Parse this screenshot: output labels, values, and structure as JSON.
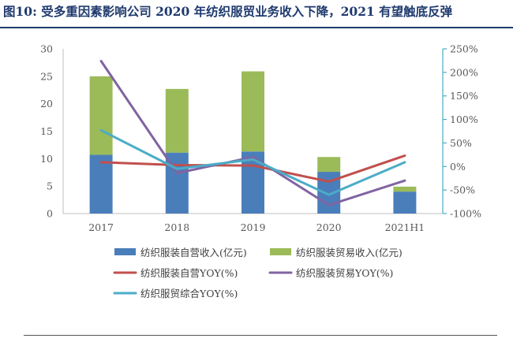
{
  "title": "图10:  受多重因素影响公司 2020 年纺织服贸业务收入下降，2021 有望触底反弹",
  "chart_data": {
    "type": "bar",
    "title": "图10:  受多重因素影响公司 2020 年纺织服贸业务收入下降，2021 有望触底反弹",
    "categories": [
      "2017",
      "2018",
      "2019",
      "2020",
      "2021H1"
    ],
    "bar_series": [
      {
        "name": "纺织服装自营收入(亿元)",
        "color": "#4a7ebb",
        "values": [
          10.7,
          11.1,
          11.3,
          7.6,
          4.0
        ]
      },
      {
        "name": "纺织服装贸易收入(亿元)",
        "color": "#9bbb59",
        "values": [
          14.3,
          11.6,
          14.6,
          2.7,
          0.9
        ]
      }
    ],
    "line_series": [
      {
        "name": "纺织服装自营YOY(%)",
        "color": "#c0504d",
        "values": [
          9,
          3,
          2,
          -32,
          23
        ]
      },
      {
        "name": "纺织服装贸易YOY(%)",
        "color": "#8064a2",
        "values": [
          224,
          -14,
          20,
          -82,
          -30
        ]
      },
      {
        "name": "纺织服贸综合YOY(%)",
        "color": "#4bacc6",
        "values": [
          77,
          -5,
          15,
          -60,
          9
        ]
      }
    ],
    "y_left": {
      "min": 0,
      "max": 30,
      "ticks": [
        0,
        5,
        10,
        15,
        20,
        25,
        30
      ]
    },
    "y_right": {
      "min": -100,
      "max": 250,
      "ticks": [
        "-100%",
        "-50%",
        "0%",
        "50%",
        "100%",
        "150%",
        "200%",
        "250%"
      ]
    },
    "legend_position": "bottom"
  }
}
